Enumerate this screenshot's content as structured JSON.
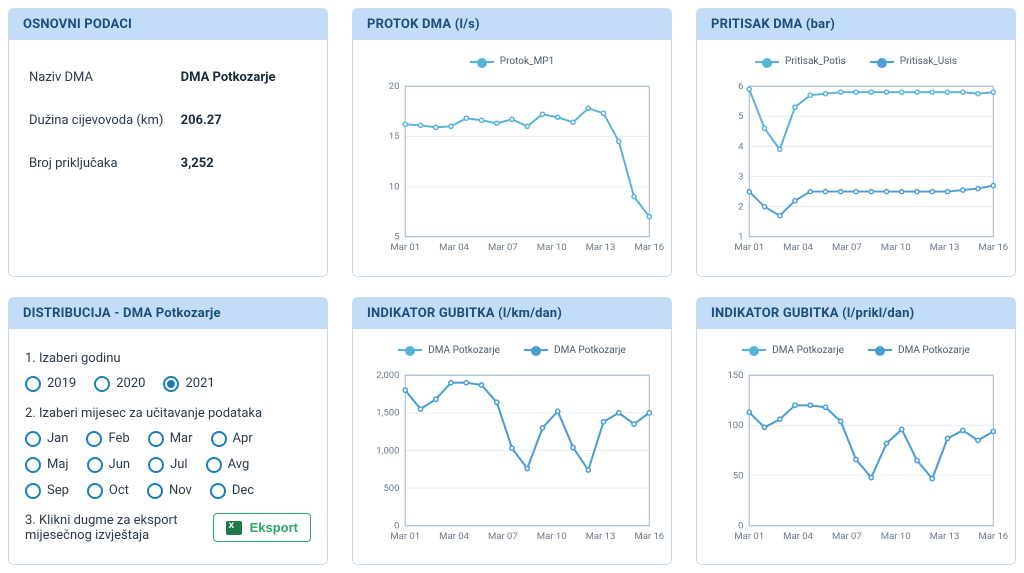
{
  "colors": {
    "accent": "#1a7fb8",
    "series1": "#54b3d6",
    "series2": "#4a9ed4",
    "panel_header_bg": "#c3dcf7",
    "panel_header_fg": "#1a4d7a",
    "grid": "#e6ecf2",
    "axis": "#9ab0c4",
    "text": "#2b3a4a",
    "export_green": "#2ca86a"
  },
  "basic": {
    "title": "OSNOVNI PODACI",
    "rows": [
      {
        "label": "Naziv DMA",
        "value": "DMA Potkozarje"
      },
      {
        "label": "Dužina cijevovoda (km)",
        "value": "206.27"
      },
      {
        "label": "Broj priključaka",
        "value": "3,252"
      }
    ]
  },
  "distribution": {
    "title": "DISTRIBUCIJA - DMA Potkozarje",
    "step1_label": "1. Izaberi godinu",
    "years": [
      "2019",
      "2020",
      "2021"
    ],
    "year_selected": "2021",
    "step2_label": "2. Izaberi mijesec za učitavanje podataka",
    "months": [
      "Jan",
      "Feb",
      "Mar",
      "Apr",
      "Maj",
      "Jun",
      "Jul",
      "Avg",
      "Sep",
      "Oct",
      "Nov",
      "Dec"
    ],
    "month_selected": null,
    "step3_label": "3. Klikni dugme za eksport mijesečnog izvještaja",
    "export_label": "Eksport"
  },
  "charts": {
    "protok": {
      "title": "PROTOK DMA (l/s)",
      "type": "line",
      "ylim": [
        5,
        20
      ],
      "ytick_step": 5,
      "x_labels": [
        "Mar 01",
        "Mar 04",
        "Mar 07",
        "Mar 10",
        "Mar 13",
        "Mar 16"
      ],
      "series": [
        {
          "name": "Protok_MP1",
          "color": "#54b3d6",
          "y": [
            16.2,
            16.1,
            15.9,
            16.0,
            16.8,
            16.6,
            16.3,
            16.7,
            16.0,
            17.2,
            16.9,
            16.4,
            17.8,
            17.3,
            14.5,
            9.0,
            7.0
          ]
        }
      ]
    },
    "pritisak": {
      "title": "PRITISAK DMA (bar)",
      "type": "line",
      "ylim": [
        1,
        6
      ],
      "ytick_step": 1,
      "x_labels": [
        "Mar 01",
        "Mar 04",
        "Mar 07",
        "Mar 10",
        "Mar 13",
        "Mar 16"
      ],
      "series": [
        {
          "name": "Pritisak_Potis",
          "color": "#54b3d6",
          "y": [
            5.9,
            4.6,
            3.9,
            5.3,
            5.7,
            5.75,
            5.8,
            5.8,
            5.8,
            5.8,
            5.8,
            5.8,
            5.8,
            5.8,
            5.8,
            5.75,
            5.8
          ]
        },
        {
          "name": "Pritisak_Usis",
          "color": "#4a9ed4",
          "y": [
            2.5,
            2.0,
            1.7,
            2.2,
            2.5,
            2.5,
            2.5,
            2.5,
            2.5,
            2.5,
            2.5,
            2.5,
            2.5,
            2.5,
            2.55,
            2.6,
            2.7
          ]
        }
      ]
    },
    "gubitak_km": {
      "title": "INDIKATOR GUBITKA (l/km/dan)",
      "type": "line",
      "ylim": [
        0,
        2000
      ],
      "ytick_step": 500,
      "x_labels": [
        "Mar 01",
        "Mar 04",
        "Mar 07",
        "Mar 10",
        "Mar 13",
        "Mar 16"
      ],
      "series": [
        {
          "name": "DMA Potkozarje",
          "color": "#54b3d6",
          "y": [
            1800,
            1550,
            1680,
            1900,
            1900,
            1870,
            1640,
            1030,
            760,
            1300,
            1520,
            1040,
            740,
            1380,
            1500,
            1350,
            1500
          ]
        },
        {
          "name": "DMA Potkozarje",
          "color": "#4a9ed4",
          "y": [
            1800,
            1550,
            1680,
            1900,
            1900,
            1870,
            1640,
            1030,
            760,
            1300,
            1520,
            1040,
            740,
            1380,
            1500,
            1350,
            1500
          ]
        }
      ]
    },
    "gubitak_prikl": {
      "title": "INDIKATOR GUBITKA (l/prikl/dan)",
      "type": "line",
      "ylim": [
        0,
        150
      ],
      "ytick_step": 50,
      "x_labels": [
        "Mar 01",
        "Mar 04",
        "Mar 07",
        "Mar 10",
        "Mar 13",
        "Mar 16"
      ],
      "series": [
        {
          "name": "DMA Potkozarje",
          "color": "#54b3d6",
          "y": [
            113,
            98,
            106,
            120,
            120,
            118,
            104,
            66,
            48,
            82,
            96,
            65,
            47,
            87,
            95,
            85,
            94
          ]
        },
        {
          "name": "DMA Potkozarje",
          "color": "#4a9ed4",
          "y": [
            113,
            98,
            106,
            120,
            120,
            118,
            104,
            66,
            48,
            82,
            96,
            65,
            47,
            87,
            95,
            85,
            94
          ]
        }
      ]
    }
  }
}
